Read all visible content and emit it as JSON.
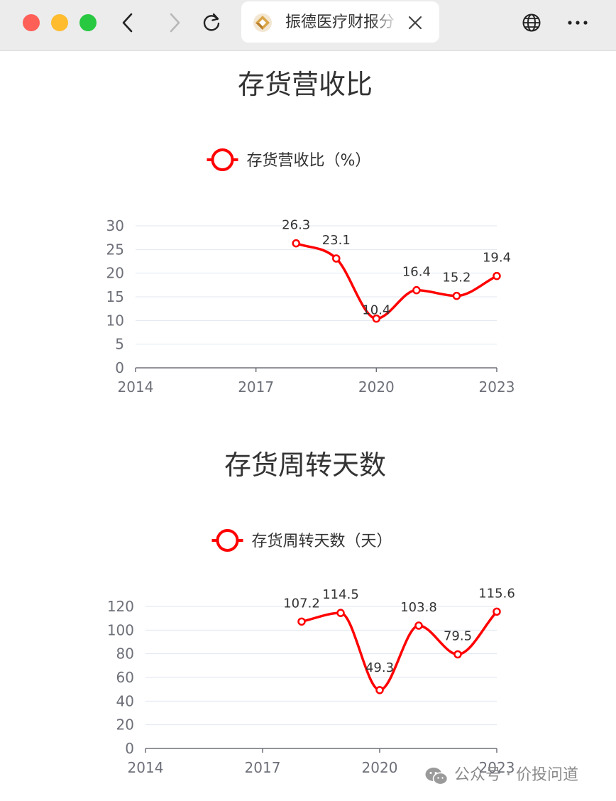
{
  "browser": {
    "tab_title": "振德医疗财报分",
    "colors": {
      "close": "#fe5f57",
      "minimize": "#febc2e",
      "zoom": "#28c840"
    },
    "icons": [
      "back-icon",
      "forward-icon",
      "reload-icon",
      "site-favicon",
      "close-icon",
      "globe-icon",
      "more-icon"
    ]
  },
  "watermark": {
    "text": "公众号 · 价投问道",
    "icon": "wechat-icon"
  },
  "chart_data": [
    {
      "type": "line",
      "title": "存货营收比",
      "series": [
        {
          "name": "存货营收比（%）",
          "color": "#ff0000",
          "points": [
            [
              2018,
              26.3
            ],
            [
              2019,
              23.1
            ],
            [
              2020,
              10.4
            ],
            [
              2021,
              16.4
            ],
            [
              2022,
              15.2
            ],
            [
              2023,
              19.4
            ]
          ]
        }
      ],
      "x_ticks": [
        2014,
        2017,
        2020,
        2023
      ],
      "y_ticks": [
        0,
        5,
        10,
        15,
        20,
        25,
        30
      ],
      "xlim": [
        2014,
        2023
      ],
      "ylim": [
        0,
        30
      ],
      "smooth": true,
      "grid": true,
      "legend_position": "top-center"
    },
    {
      "type": "line",
      "title": "存货周转天数",
      "series": [
        {
          "name": "存货周转天数（天）",
          "color": "#ff0000",
          "points": [
            [
              2018,
              107.2
            ],
            [
              2019,
              114.5
            ],
            [
              2020,
              49.3
            ],
            [
              2021,
              103.8
            ],
            [
              2022,
              79.5
            ],
            [
              2023,
              115.6
            ]
          ]
        }
      ],
      "x_ticks": [
        2014,
        2017,
        2020,
        2023
      ],
      "y_ticks": [
        0,
        20,
        40,
        60,
        80,
        100,
        120
      ],
      "xlim": [
        2014,
        2023
      ],
      "ylim": [
        0,
        120
      ],
      "smooth": true,
      "grid": true,
      "legend_position": "top-center"
    }
  ]
}
